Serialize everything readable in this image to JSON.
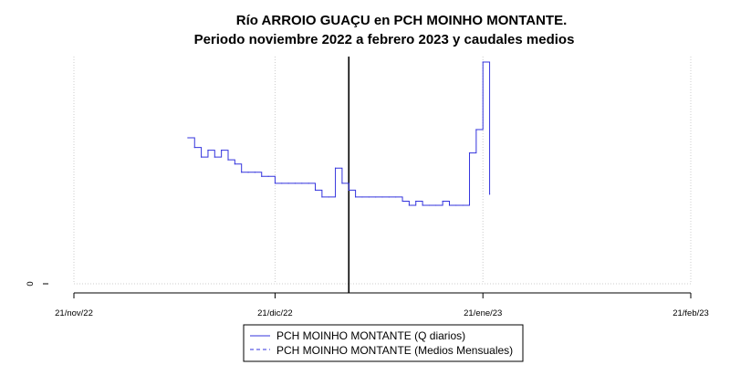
{
  "chart_data": {
    "type": "line",
    "title": "Río ARROIO GUAÇU en PCH MOINHO MONTANTE.",
    "subtitle": "Periodo noviembre 2022 a febrero 2023 y caudales medios",
    "xlabel": "",
    "ylabel": "",
    "x_axis": {
      "type": "date",
      "range": [
        "2022-11-21",
        "2023-02-21"
      ],
      "ticks": [
        "2022-11-21",
        "2022-12-21",
        "2023-01-21",
        "2023-02-21"
      ],
      "tick_labels": [
        "21/nov/22",
        "21/dic/22",
        "21/ene/23",
        "21/feb/23"
      ]
    },
    "y_axis": {
      "range": [
        0,
        16.5
      ],
      "ticks": [
        0
      ],
      "tick_labels": [
        "0"
      ]
    },
    "grid": true,
    "reference_line": {
      "date": "2023-01-01",
      "color": "#000000"
    },
    "legend": {
      "position": "bottom-center",
      "entries": [
        {
          "label": "PCH MOINHO MONTANTE (Q diarios)",
          "color": "#3333dd",
          "style": "solid"
        },
        {
          "label": "PCH MOINHO MONTANTE (Medios Mensuales)",
          "color": "#3333dd",
          "style": "dashed"
        }
      ]
    },
    "series": [
      {
        "name": "PCH MOINHO MONTANTE (Q diarios)",
        "color": "#3333dd",
        "style": "step",
        "x": [
          "2022-12-08",
          "2022-12-09",
          "2022-12-10",
          "2022-12-11",
          "2022-12-12",
          "2022-12-13",
          "2022-12-14",
          "2022-12-15",
          "2022-12-16",
          "2022-12-17",
          "2022-12-18",
          "2022-12-19",
          "2022-12-20",
          "2022-12-21",
          "2022-12-22",
          "2022-12-23",
          "2022-12-24",
          "2022-12-25",
          "2022-12-26",
          "2022-12-27",
          "2022-12-28",
          "2022-12-29",
          "2022-12-30",
          "2022-12-31",
          "2023-01-01",
          "2023-01-02",
          "2023-01-03",
          "2023-01-04",
          "2023-01-05",
          "2023-01-06",
          "2023-01-07",
          "2023-01-08",
          "2023-01-09",
          "2023-01-10",
          "2023-01-11",
          "2023-01-12",
          "2023-01-13",
          "2023-01-14",
          "2023-01-15",
          "2023-01-16",
          "2023-01-17",
          "2023-01-18",
          "2023-01-19",
          "2023-01-20",
          "2023-01-21",
          "2023-01-22"
        ],
        "y": [
          10.6,
          9.9,
          9.2,
          9.7,
          9.2,
          9.7,
          9.0,
          8.7,
          8.1,
          8.1,
          8.1,
          7.8,
          7.8,
          7.3,
          7.3,
          7.3,
          7.3,
          7.3,
          7.3,
          6.8,
          6.3,
          6.3,
          8.4,
          7.3,
          6.8,
          6.3,
          6.3,
          6.3,
          6.3,
          6.3,
          6.3,
          6.3,
          6.0,
          5.7,
          6.0,
          5.7,
          5.7,
          5.7,
          6.0,
          5.7,
          5.7,
          5.7,
          9.5,
          11.2,
          16.1,
          6.5
        ]
      },
      {
        "name": "PCH MOINHO MONTANTE (Medios Mensuales)",
        "color": "#3333dd",
        "style": "dashed",
        "x": [],
        "y": []
      }
    ]
  }
}
